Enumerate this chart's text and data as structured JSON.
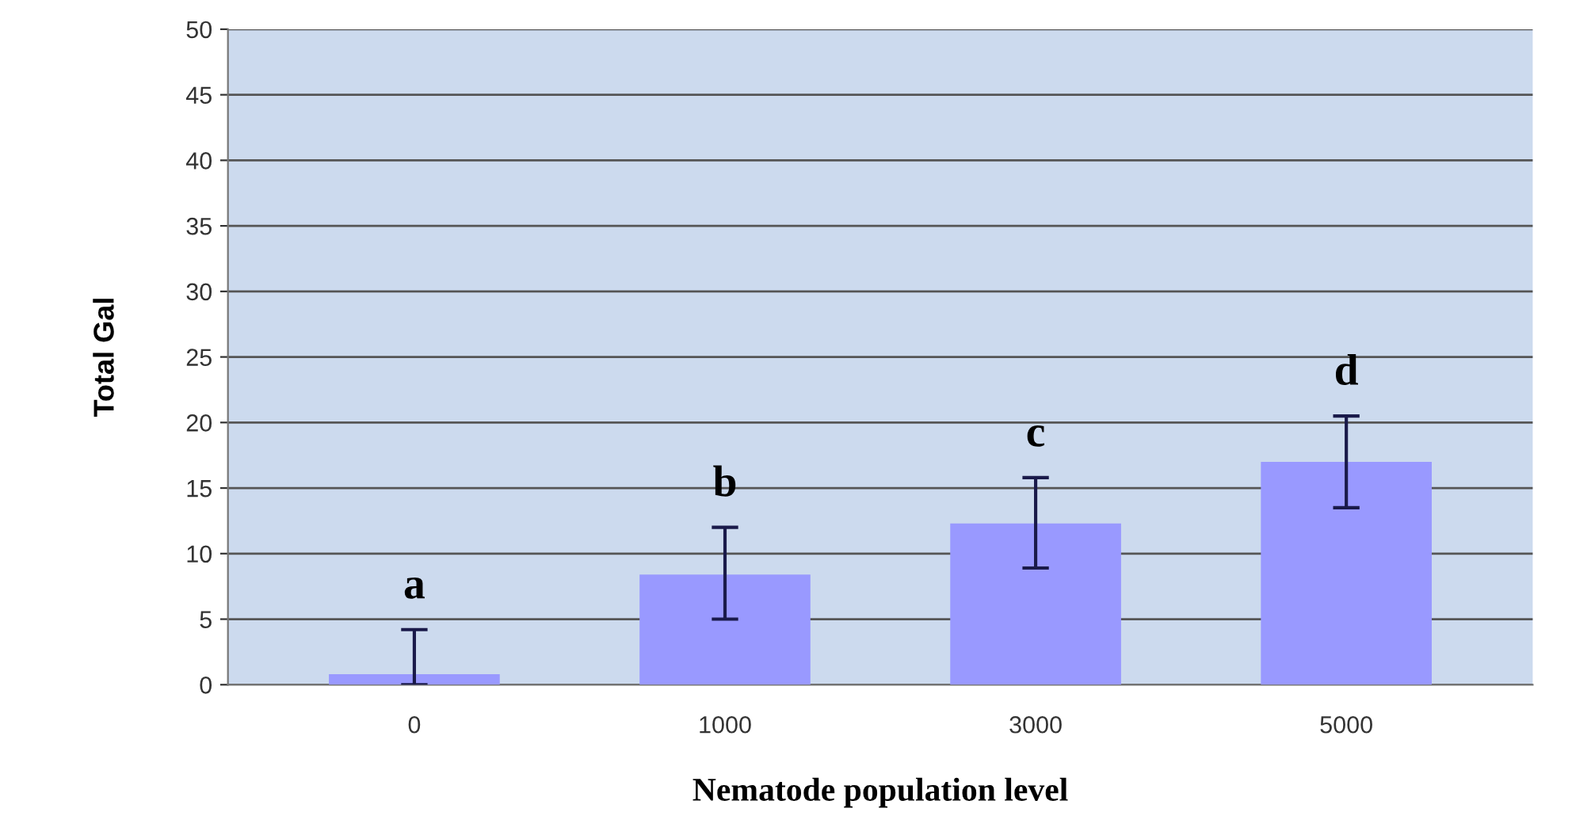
{
  "chart_data": {
    "type": "bar",
    "xlabel": "Nematode population level",
    "ylabel": "Total Gal",
    "categories": [
      "0",
      "1000",
      "3000",
      "5000"
    ],
    "values": [
      0.8,
      8.4,
      12.3,
      17.0
    ],
    "errors": [
      [
        0,
        4.2
      ],
      [
        5.0,
        12.0
      ],
      [
        8.9,
        15.8
      ],
      [
        13.5,
        20.5
      ]
    ],
    "color": "#9999ff",
    "ylim": [
      0,
      50
    ],
    "yticks": [
      0,
      5,
      10,
      15,
      20,
      25,
      30,
      35,
      40,
      45,
      50
    ],
    "grid": "y",
    "annotations": [
      "a",
      "b",
      "c",
      "d"
    ]
  }
}
